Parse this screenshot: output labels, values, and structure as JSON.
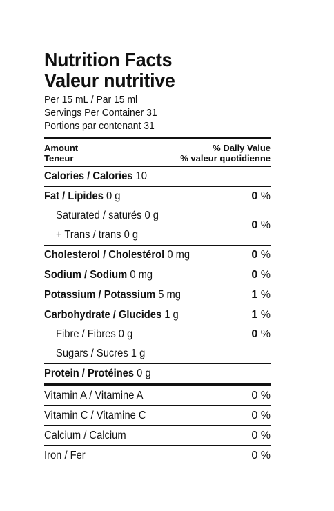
{
  "title_en": "Nutrition Facts",
  "title_fr": "Valeur nutritive",
  "per": "Per 15 mL / Par 15 ml",
  "servings_en": "Servings Per Container 31",
  "servings_fr": "Portions par contenant 31",
  "header": {
    "amount_en": "Amount",
    "amount_fr": "Teneur",
    "dv_en": "% Daily Value",
    "dv_fr": "% valeur quotidienne"
  },
  "nutrients": {
    "calories": {
      "label": "Calories / Calories",
      "amount": "10"
    },
    "fat": {
      "label": "Fat / Lipides",
      "amount": "0 g",
      "dv": "0",
      "pct": "%"
    },
    "saturated": {
      "label": "Saturated / saturés 0 g"
    },
    "trans": {
      "label": "+ Trans / trans 0 g"
    },
    "sat_trans_dv": "0",
    "cholesterol": {
      "label": "Cholesterol / Cholestérol",
      "amount": "0 mg",
      "dv": "0"
    },
    "sodium": {
      "label": "Sodium / Sodium",
      "amount": "0 mg",
      "dv": "0"
    },
    "potassium": {
      "label": "Potassium / Potassium",
      "amount": "5 mg",
      "dv": "1"
    },
    "carbohydrate": {
      "label": "Carbohydrate / Glucides",
      "amount": "1 g",
      "dv": "1"
    },
    "fibre": {
      "label": "Fibre / Fibres 0 g",
      "dv": "0"
    },
    "sugars": {
      "label": "Sugars / Sucres 1 g"
    },
    "protein": {
      "label": "Protein / Protéines",
      "amount": "0 g"
    }
  },
  "vitamins": [
    {
      "label": "Vitamin A / Vitamine A",
      "dv": "0 %"
    },
    {
      "label": "Vitamin C / Vitamine C",
      "dv": "0 %"
    },
    {
      "label": "Calcium / Calcium",
      "dv": "0 %"
    },
    {
      "label": "Iron / Fer",
      "dv": "0 %"
    }
  ],
  "pct_sign": "%"
}
